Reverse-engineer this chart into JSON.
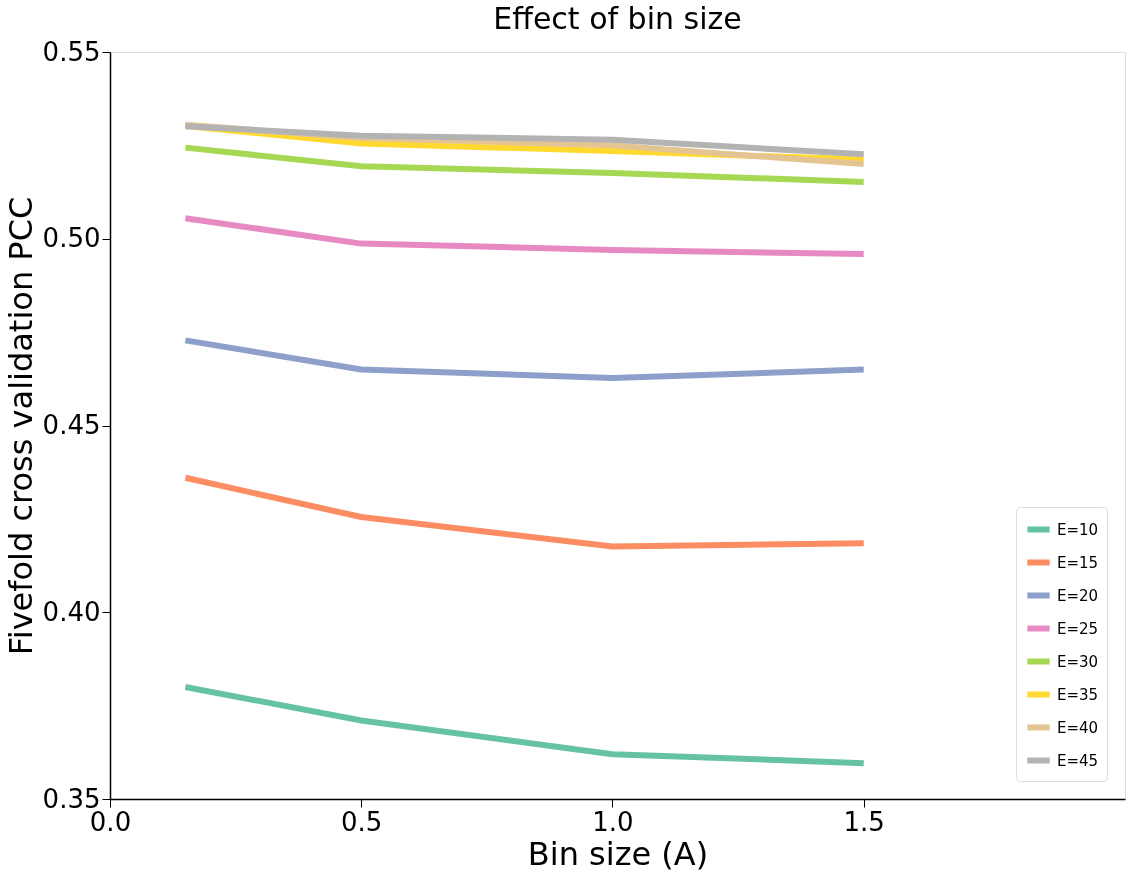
{
  "chart_data": {
    "type": "line",
    "title": "Effect of bin size",
    "xlabel": "Bin size (A)",
    "ylabel": "Fivefold cross validation PCC",
    "x": [
      0.15,
      0.5,
      1.0,
      1.5
    ],
    "series": [
      {
        "name": "E=10",
        "color": "#66c2a5",
        "values": [
          0.38,
          0.371,
          0.362,
          0.3596
        ]
      },
      {
        "name": "E=15",
        "color": "#fc8d62",
        "values": [
          0.436,
          0.4255,
          0.4176,
          0.4185
        ]
      },
      {
        "name": "E=20",
        "color": "#8da0cb",
        "values": [
          0.4728,
          0.465,
          0.4627,
          0.465
        ]
      },
      {
        "name": "E=25",
        "color": "#e78ac3",
        "values": [
          0.5055,
          0.4987,
          0.497,
          0.4959
        ]
      },
      {
        "name": "E=30",
        "color": "#a6d854",
        "values": [
          0.5244,
          0.5194,
          0.5176,
          0.5152
        ]
      },
      {
        "name": "E=35",
        "color": "#ffd92f",
        "values": [
          0.5302,
          0.5255,
          0.5235,
          0.5212
        ]
      },
      {
        "name": "E=40",
        "color": "#e5c494",
        "values": [
          0.5305,
          0.527,
          0.525,
          0.52
        ]
      },
      {
        "name": "E=45",
        "color": "#b3b3b3",
        "values": [
          0.5301,
          0.5276,
          0.5265,
          0.5226
        ]
      }
    ],
    "xlim": [
      0,
      2.02
    ],
    "xticks": [
      {
        "value": 0,
        "label": "0.0"
      },
      {
        "value": 0.5,
        "label": "0.5"
      },
      {
        "value": 1.0,
        "label": "1.0"
      },
      {
        "value": 1.5,
        "label": "1.5"
      }
    ],
    "ylim": [
      0.35,
      0.55
    ],
    "yticks": [
      0.35,
      {
        "value": 0.4,
        "label": "0.40"
      },
      0.45,
      {
        "value": 0.5,
        "label": "0.50"
      },
      0.55
    ],
    "grid": false,
    "legend": "bottom right",
    "marker": "none",
    "line_style": "solid"
  }
}
